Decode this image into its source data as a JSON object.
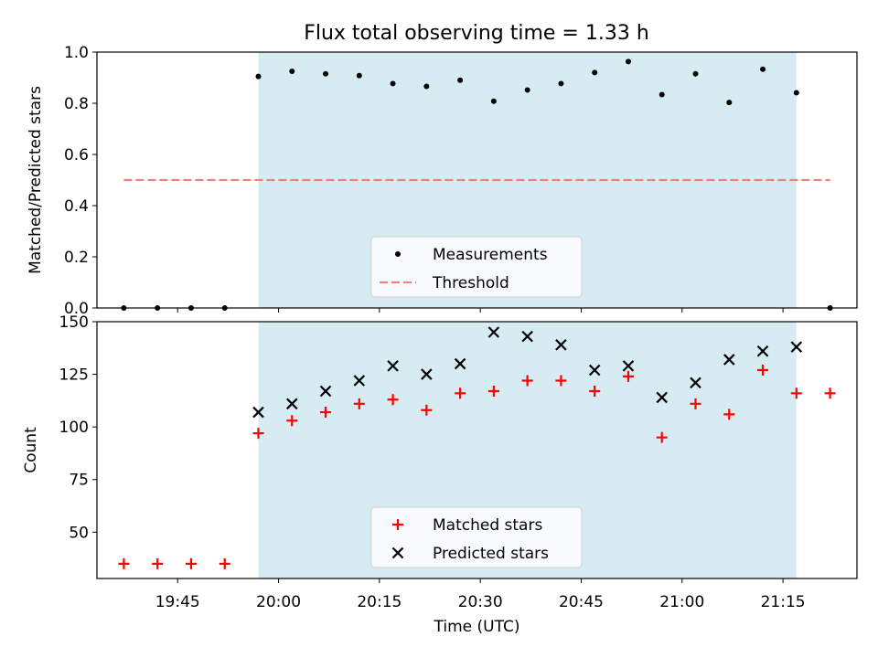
{
  "figure": {
    "title": "Flux total observing time = 1.33 h"
  },
  "chart_data": [
    {
      "type": "scatter",
      "ylabel": "Matched/Predicted stars",
      "ylim": [
        0,
        1.0
      ],
      "yticks": [
        0.0,
        0.2,
        0.4,
        0.6,
        0.8,
        1.0
      ],
      "ytick_labels": [
        "0.0",
        "0.2",
        "0.4",
        "0.6",
        "0.8",
        "1.0"
      ],
      "observing_window": [
        "19:57",
        "21:17"
      ],
      "legend": {
        "placement": "lower center",
        "entries": [
          "Measurements",
          "Threshold"
        ]
      },
      "threshold": {
        "name": "Threshold",
        "y": 0.5,
        "x_range": [
          "19:37",
          "21:22"
        ],
        "color": "#f08080",
        "style": "dashed"
      },
      "series": [
        {
          "name": "Measurements",
          "color": "#000000",
          "marker": "dot",
          "x": [
            "19:37",
            "19:42",
            "19:47",
            "19:52",
            "19:57",
            "20:02",
            "20:07",
            "20:12",
            "20:17",
            "20:22",
            "20:27",
            "20:32",
            "20:37",
            "20:42",
            "20:47",
            "20:52",
            "20:57",
            "21:02",
            "21:07",
            "21:12",
            "21:17",
            "21:22"
          ],
          "y": [
            0.0,
            0.0,
            0.0,
            0.0,
            0.905,
            0.925,
            0.915,
            0.908,
            0.877,
            0.866,
            0.89,
            0.808,
            0.852,
            0.877,
            0.92,
            0.963,
            0.834,
            0.915,
            0.803,
            0.933,
            0.841,
            0.0
          ]
        }
      ]
    },
    {
      "type": "scatter",
      "ylabel": "Count",
      "xlabel": "Time (UTC)",
      "ylim": [
        28,
        150
      ],
      "yticks": [
        50,
        75,
        100,
        125,
        150
      ],
      "ytick_labels": [
        "50",
        "75",
        "100",
        "125",
        "150"
      ],
      "xticks": [
        "19:45",
        "20:00",
        "20:15",
        "20:30",
        "20:45",
        "21:00",
        "21:15"
      ],
      "xtick_labels": [
        "19:45",
        "20:00",
        "20:15",
        "20:30",
        "20:45",
        "21:00",
        "21:15"
      ],
      "observing_window": [
        "19:57",
        "21:17"
      ],
      "legend": {
        "placement": "lower center",
        "entries": [
          "Matched stars",
          "Predicted stars"
        ]
      },
      "series": [
        {
          "name": "Matched stars",
          "color": "#ff0000",
          "marker": "plus",
          "x": [
            "19:37",
            "19:42",
            "19:47",
            "19:52",
            "19:57",
            "20:02",
            "20:07",
            "20:12",
            "20:17",
            "20:22",
            "20:27",
            "20:32",
            "20:37",
            "20:42",
            "20:47",
            "20:52",
            "20:57",
            "21:02",
            "21:07",
            "21:12",
            "21:17",
            "21:22"
          ],
          "y": [
            35,
            35,
            35,
            35,
            97,
            103,
            107,
            111,
            113,
            108,
            116,
            117,
            122,
            122,
            117,
            124,
            95,
            111,
            106,
            127,
            116,
            116
          ]
        },
        {
          "name": "Predicted stars",
          "color": "#000000",
          "marker": "x",
          "x": [
            "19:57",
            "20:02",
            "20:07",
            "20:12",
            "20:17",
            "20:22",
            "20:27",
            "20:32",
            "20:37",
            "20:42",
            "20:47",
            "20:52",
            "20:57",
            "21:02",
            "21:07",
            "21:12",
            "21:17"
          ],
          "y": [
            107,
            111,
            117,
            122,
            129,
            125,
            130,
            145,
            143,
            139,
            127,
            129,
            114,
            121,
            132,
            136,
            138
          ]
        }
      ]
    }
  ]
}
